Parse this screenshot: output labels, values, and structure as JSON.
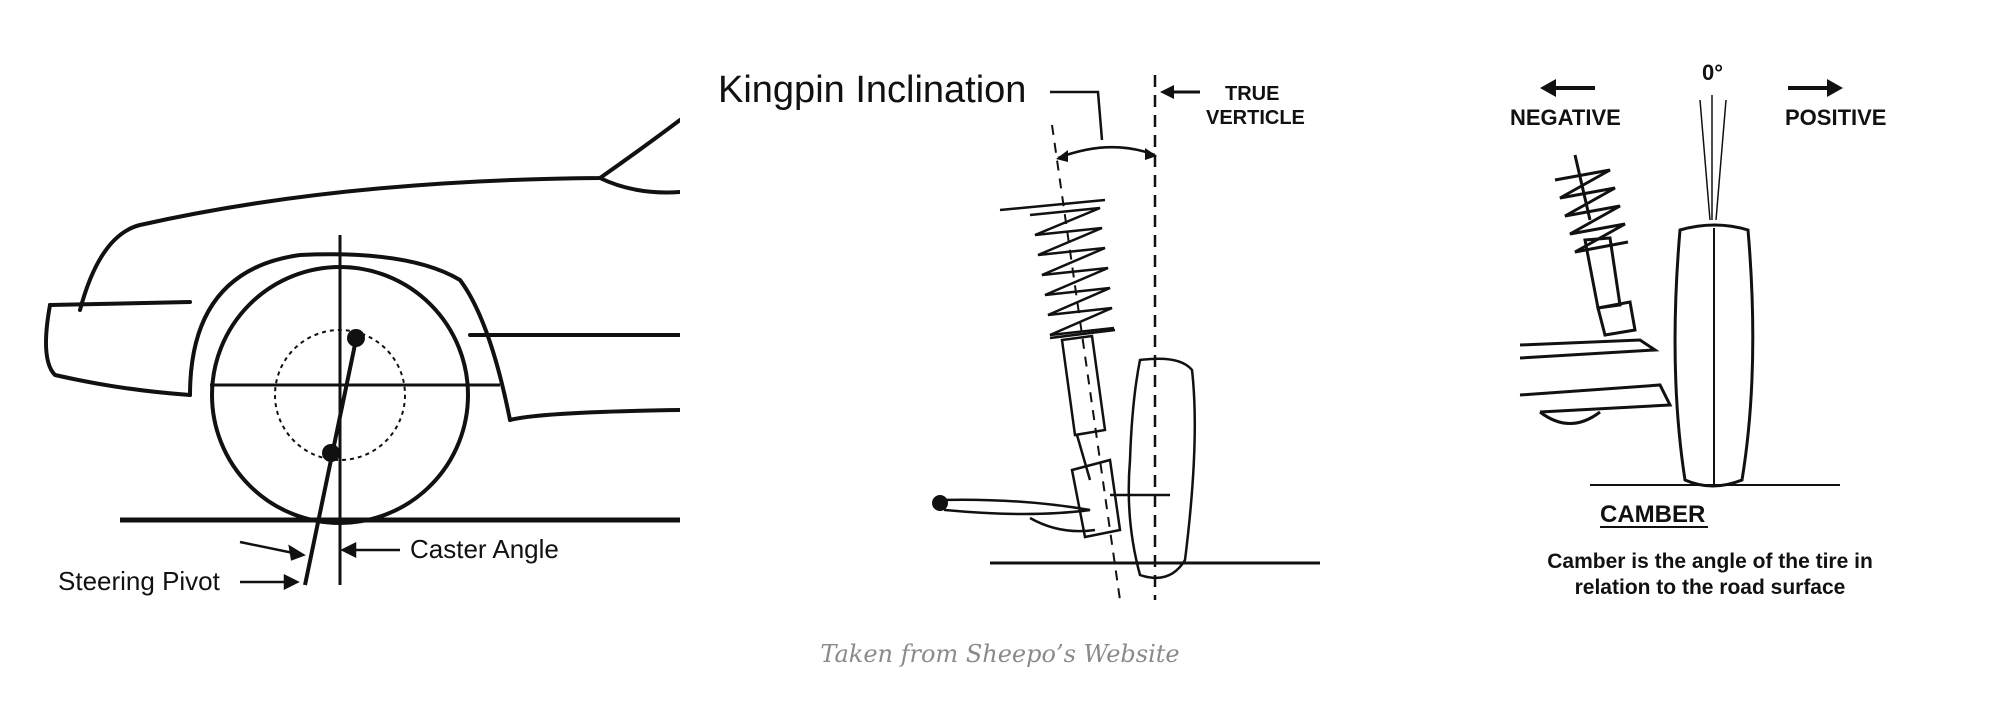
{
  "caster": {
    "labels": {
      "steering_pivot": "Steering Pivot",
      "caster_angle": "Caster Angle"
    }
  },
  "kingpin": {
    "labels": {
      "title": "Kingpin Inclination",
      "true_line1": "TRUE",
      "true_line2": "VERTICLE"
    }
  },
  "camber": {
    "labels": {
      "zero": "0°",
      "negative": "NEGATIVE",
      "positive": "POSITIVE",
      "heading": "CAMBER",
      "desc_line1": "Camber is the angle of the tire in",
      "desc_line2": "relation to the road surface"
    }
  },
  "caption": "Taken from Sheepo’s Website"
}
